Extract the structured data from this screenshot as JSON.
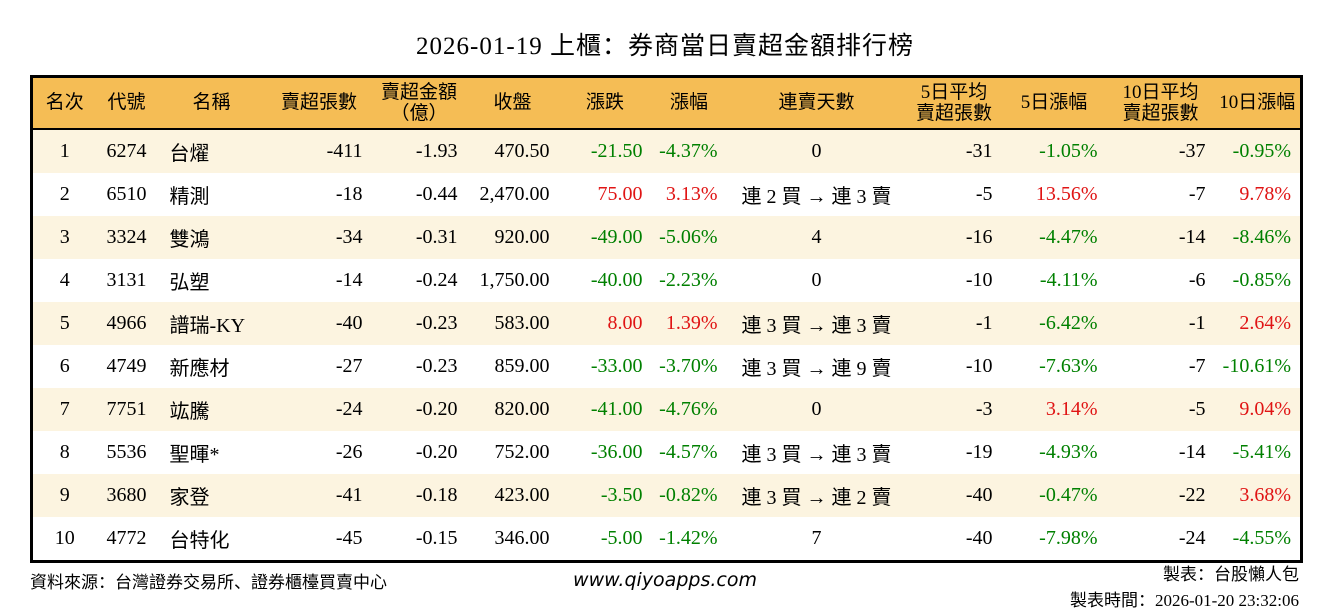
{
  "title": "2026-01-19 上櫃：券商當日賣超金額排行榜",
  "colors": {
    "up_red": "#e01414",
    "down_green": "#008000",
    "header_bg": "#f5bd55",
    "row_alt_bg": "#fcf4e0",
    "border": "#000000"
  },
  "chart_data": {
    "type": "table",
    "title": "2026-01-19 上櫃：券商當日賣超金額排行榜",
    "columns": [
      "名次",
      "代號",
      "名稱",
      "賣超張數",
      "賣超金額\n（億）",
      "收盤",
      "漲跌",
      "漲幅",
      "連賣天數",
      "5日平均\n賣超張數",
      "5日漲幅",
      "10日平均\n賣超張數",
      "10日漲幅"
    ],
    "rows": [
      [
        "1",
        "6274",
        "台燿",
        "-411",
        "-1.93",
        "470.50",
        "-21.50",
        "-4.37%",
        "0",
        "-31",
        "-1.05%",
        "-37",
        "-0.95%"
      ],
      [
        "2",
        "6510",
        "精測",
        "-18",
        "-0.44",
        "2,470.00",
        "75.00",
        "3.13%",
        "連 2 買 → 連 3 賣",
        "-5",
        "13.56%",
        "-7",
        "9.78%"
      ],
      [
        "3",
        "3324",
        "雙鴻",
        "-34",
        "-0.31",
        "920.00",
        "-49.00",
        "-5.06%",
        "4",
        "-16",
        "-4.47%",
        "-14",
        "-8.46%"
      ],
      [
        "4",
        "3131",
        "弘塑",
        "-14",
        "-0.24",
        "1,750.00",
        "-40.00",
        "-2.23%",
        "0",
        "-10",
        "-4.11%",
        "-6",
        "-0.85%"
      ],
      [
        "5",
        "4966",
        "譜瑞-KY",
        "-40",
        "-0.23",
        "583.00",
        "8.00",
        "1.39%",
        "連 3 買 → 連 3 賣",
        "-1",
        "-6.42%",
        "-1",
        "2.64%"
      ],
      [
        "6",
        "4749",
        "新應材",
        "-27",
        "-0.23",
        "859.00",
        "-33.00",
        "-3.70%",
        "連 3 買 → 連 9 賣",
        "-10",
        "-7.63%",
        "-7",
        "-10.61%"
      ],
      [
        "7",
        "7751",
        "竑騰",
        "-24",
        "-0.20",
        "820.00",
        "-41.00",
        "-4.76%",
        "0",
        "-3",
        "3.14%",
        "-5",
        "9.04%"
      ],
      [
        "8",
        "5536",
        "聖暉*",
        "-26",
        "-0.20",
        "752.00",
        "-36.00",
        "-4.57%",
        "連 3 買 → 連 3 賣",
        "-19",
        "-4.93%",
        "-14",
        "-5.41%"
      ],
      [
        "9",
        "3680",
        "家登",
        "-41",
        "-0.18",
        "423.00",
        "-3.50",
        "-0.82%",
        "連 3 買 → 連 2 賣",
        "-40",
        "-0.47%",
        "-22",
        "3.68%"
      ],
      [
        "10",
        "4772",
        "台特化",
        "-45",
        "-0.15",
        "346.00",
        "-5.00",
        "-1.42%",
        "7",
        "-40",
        "-7.98%",
        "-24",
        "-4.55%"
      ]
    ]
  },
  "footer": {
    "source": "資料來源：台灣證券交易所、證券櫃檯買賣中心",
    "site": "www.qiyoapps.com",
    "maker": "製表：台股懶人包",
    "made_time": "製表時間：2026-01-20 23:32:06"
  }
}
